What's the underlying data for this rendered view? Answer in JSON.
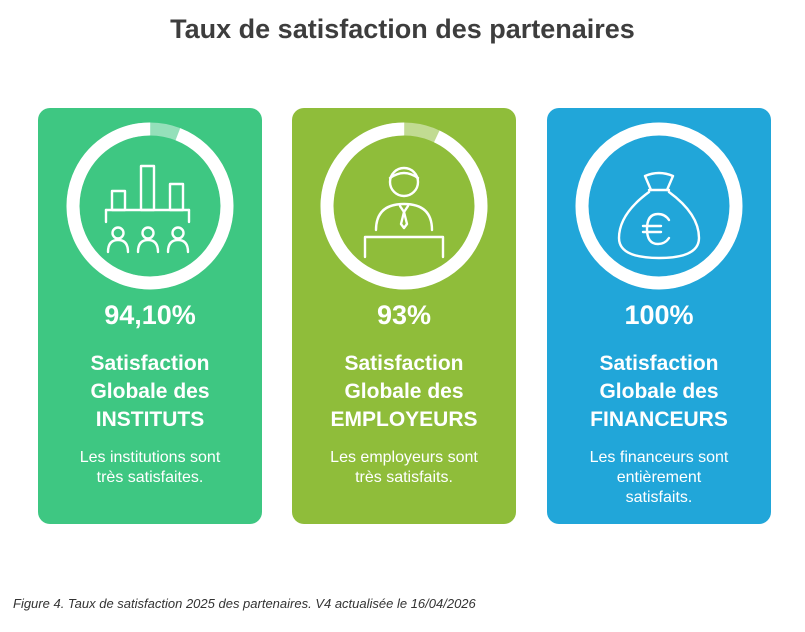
{
  "title": "Taux de satisfaction des partenaires",
  "caption": "Figure 4. Taux de satisfaction 2025 des partenaires. V4 actualisée le 16/04/2026",
  "chart_data": {
    "type": "gauge",
    "title": "Taux de satisfaction des partenaires",
    "unit": "%",
    "max": 100,
    "items": [
      {
        "value": 94.1,
        "value_label": "94,10%",
        "label_lines": [
          "Satisfaction",
          "Globale des",
          "INSTITUTS"
        ],
        "desc_lines": [
          "Les institutions sont",
          "très satisfaites."
        ],
        "color": "#3ec782",
        "icon": "bar-chart-people-icon"
      },
      {
        "value": 93,
        "value_label": "93%",
        "label_lines": [
          "Satisfaction",
          "Globale des",
          "EMPLOYEURS"
        ],
        "desc_lines": [
          "Les employeurs sont",
          "très satisfaits."
        ],
        "color": "#8fbd3a",
        "icon": "employer-person-icon"
      },
      {
        "value": 100,
        "value_label": "100%",
        "label_lines": [
          "Satisfaction",
          "Globale des",
          "FINANCEURS"
        ],
        "desc_lines": [
          "Les financeurs sont",
          "entièrement",
          "satisfaits."
        ],
        "color": "#21a6d9",
        "icon": "euro-money-bag-icon"
      }
    ]
  }
}
